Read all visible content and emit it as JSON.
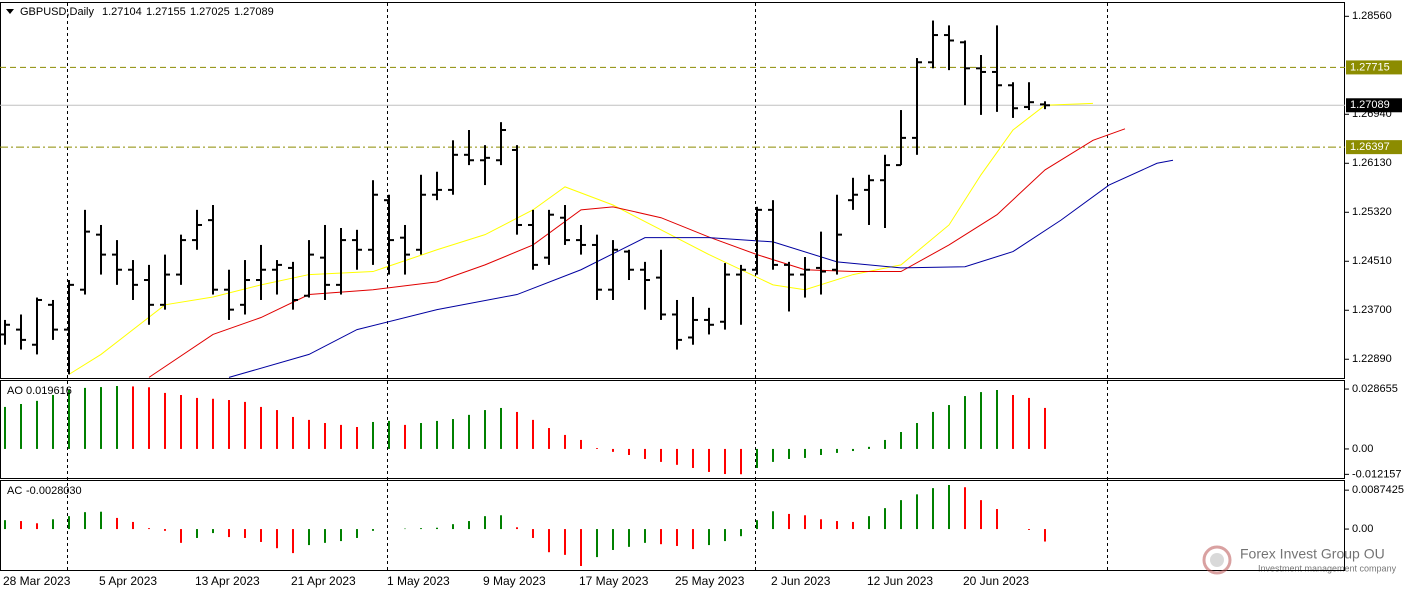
{
  "chart_data": [
    {
      "type": "ohlc",
      "title": "GBPUSD,Daily",
      "categories": [
        "28 Mar 2023",
        null,
        null,
        null,
        null,
        null,
        "5 Apr 2023",
        null,
        null,
        null,
        null,
        null,
        "13 Apr 2023",
        null,
        null,
        null,
        null,
        null,
        "21 Apr 2023",
        null,
        null,
        null,
        null,
        null,
        "1 May 2023",
        null,
        null,
        null,
        null,
        null,
        "9 May 2023",
        null,
        null,
        null,
        null,
        null,
        "17 May 2023",
        null,
        null,
        null,
        null,
        null,
        "25 May 2023",
        null,
        null,
        null,
        null,
        null,
        "2 Jun 2023",
        null,
        null,
        null,
        null,
        null,
        "12 Jun 2023",
        null,
        null,
        null,
        null,
        null,
        "20 Jun 2023",
        null,
        null,
        null,
        null,
        null
      ],
      "open": [
        1.233,
        1.2338,
        1.2313,
        1.2379,
        1.2338,
        1.2404,
        1.2495,
        1.2462,
        1.2437,
        1.242,
        1.2379,
        1.2429,
        1.2486,
        1.2519,
        1.2404,
        1.2379,
        1.242,
        1.2437,
        1.244,
        1.2394,
        1.2457,
        1.2412,
        1.2486,
        1.247,
        1.2552,
        1.249,
        1.247,
        1.2561,
        1.2569,
        1.2627,
        1.2618,
        1.2618,
        1.2635,
        1.2511,
        1.2457,
        1.2523,
        1.2486,
        1.2478,
        1.2404,
        1.2467,
        1.2437,
        1.2424,
        1.2363,
        1.2325,
        1.2354,
        1.2351,
        1.2429,
        1.2437,
        1.2536,
        1.2445,
        1.2429,
        1.244,
        1.2437,
        1.2552,
        1.2569,
        1.2585,
        1.261,
        1.2655,
        1.278,
        1.2825,
        1.2813,
        1.277,
        1.2764,
        1.2742,
        1.2706,
        1.27104
      ],
      "high": [
        1.2354,
        1.2363,
        1.2391,
        1.2387,
        1.242,
        1.2536,
        1.2511,
        1.2486,
        1.2453,
        1.2445,
        1.2462,
        1.2495,
        1.2536,
        1.2544,
        1.2437,
        1.2453,
        1.2478,
        1.2453,
        1.245,
        1.2486,
        1.2511,
        1.2506,
        1.2503,
        1.2585,
        1.2561,
        1.2511,
        1.2594,
        1.2599,
        1.2651,
        1.2668,
        1.2643,
        1.2681,
        1.2643,
        1.2536,
        1.2536,
        1.2544,
        1.2511,
        1.2495,
        1.2486,
        1.247,
        1.245,
        1.247,
        1.2387,
        1.2392,
        1.2374,
        1.2448,
        1.2445,
        1.2541,
        1.2552,
        1.245,
        1.2458,
        1.25,
        1.2561,
        1.2589,
        1.2594,
        1.2627,
        1.2701,
        1.2787,
        1.2849,
        1.2841,
        1.2816,
        1.2792,
        1.2841,
        1.2747,
        1.2747,
        1.27155
      ],
      "low": [
        1.2313,
        1.2305,
        1.2297,
        1.2321,
        1.2264,
        1.2396,
        1.2429,
        1.2412,
        1.2387,
        1.2346,
        1.2371,
        1.2412,
        1.247,
        1.2396,
        1.2354,
        1.2363,
        1.2387,
        1.2396,
        1.2371,
        1.2391,
        1.2387,
        1.2396,
        1.2437,
        1.2445,
        1.2429,
        1.2429,
        1.2462,
        1.2552,
        1.2561,
        1.261,
        1.2577,
        1.261,
        1.2495,
        1.2437,
        1.2445,
        1.2478,
        1.2462,
        1.2387,
        1.2387,
        1.242,
        1.2371,
        1.2354,
        1.2305,
        1.2313,
        1.233,
        1.2338,
        1.2346,
        1.2429,
        1.2437,
        1.2368,
        1.2391,
        1.2396,
        1.2429,
        1.2536,
        1.2511,
        1.2506,
        1.261,
        1.2627,
        1.277,
        1.2767,
        1.2709,
        1.2693,
        1.2698,
        1.2688,
        1.2701,
        1.27025
      ],
      "close": [
        1.2346,
        1.2321,
        1.2387,
        1.2338,
        1.2412,
        1.25,
        1.2462,
        1.2437,
        1.2412,
        1.2379,
        1.2429,
        1.2486,
        1.2511,
        1.2404,
        1.2371,
        1.242,
        1.2437,
        1.2445,
        1.2387,
        1.2462,
        1.2412,
        1.2486,
        1.247,
        1.2561,
        1.2486,
        1.2462,
        1.2561,
        1.2569,
        1.2627,
        1.2618,
        1.2622,
        1.2668,
        1.2511,
        1.2445,
        1.2528,
        1.2486,
        1.2478,
        1.2404,
        1.247,
        1.2437,
        1.242,
        1.2363,
        1.2321,
        1.2354,
        1.2346,
        1.2429,
        1.2437,
        1.2536,
        1.2445,
        1.2429,
        1.2437,
        1.2434,
        1.2495,
        1.2561,
        1.2585,
        1.261,
        1.2655,
        1.278,
        1.2825,
        1.2816,
        1.277,
        1.2764,
        1.2742,
        1.2704,
        1.2714,
        1.27089
      ],
      "color": "#000000",
      "ylim": [
        1.2258,
        1.2878
      ],
      "yticks": [
        {
          "value": 1.2856,
          "label": "1.28560"
        },
        {
          "value": 1.2694,
          "label": "1.26940"
        },
        {
          "value": 1.2613,
          "label": "1.26130"
        },
        {
          "value": 1.2532,
          "label": "1.25320"
        },
        {
          "value": 1.2451,
          "label": "1.24510"
        },
        {
          "value": 1.237,
          "label": "1.23700"
        },
        {
          "value": 1.2289,
          "label": "1.22890"
        }
      ],
      "levels": [
        {
          "value": 1.27715,
          "label": "1.27715",
          "color": "#8c8c00",
          "style": "dash"
        },
        {
          "value": 1.26397,
          "label": "1.26397",
          "color": "#8c8c00",
          "style": "dashdot"
        }
      ],
      "current_color": "#c0c0c0",
      "lines": [
        {
          "color": "#ffff00",
          "x": [
            4,
            6,
            10,
            13,
            16,
            19,
            23,
            27,
            30,
            33,
            35,
            38,
            41,
            44,
            48,
            50,
            53,
            56,
            59,
            61,
            63,
            65,
            68
          ],
          "values": [
            1.2264,
            1.2297,
            1.2379,
            1.2392,
            1.2412,
            1.2429,
            1.2434,
            1.247,
            1.2495,
            1.2536,
            1.2574,
            1.2544,
            1.2503,
            1.2462,
            1.2412,
            1.2404,
            1.2429,
            1.2445,
            1.2511,
            1.2594,
            1.2668,
            1.2709,
            1.2712
          ]
        },
        {
          "color": "#e00000",
          "x": [
            9,
            13,
            16,
            19,
            23,
            27,
            30,
            33,
            36,
            38,
            41,
            44,
            47,
            50,
            53,
            56,
            59,
            62,
            65,
            68,
            70
          ],
          "values": [
            1.2259,
            1.233,
            1.2358,
            1.2396,
            1.2404,
            1.2417,
            1.2445,
            1.2478,
            1.2536,
            1.2541,
            1.2523,
            1.2491,
            1.2462,
            1.2437,
            1.2434,
            1.2434,
            1.2478,
            1.2528,
            1.2602,
            1.2651,
            1.267
          ]
        },
        {
          "color": "#0000a0",
          "x": [
            14,
            19,
            22,
            27,
            32,
            36,
            40,
            44,
            48,
            52,
            56,
            60,
            63,
            66,
            69,
            72,
            73
          ],
          "values": [
            1.2259,
            1.2297,
            1.2338,
            1.2371,
            1.2396,
            1.2437,
            1.249,
            1.249,
            1.2483,
            1.245,
            1.244,
            1.2442,
            1.2467,
            1.2519,
            1.2577,
            1.2613,
            1.2618
          ]
        }
      ]
    },
    {
      "type": "histogram",
      "title": "AO",
      "values": [
        0.0201,
        0.0215,
        0.023,
        0.0258,
        0.0282,
        0.0292,
        0.0296,
        0.0301,
        0.0299,
        0.0295,
        0.0268,
        0.0258,
        0.0244,
        0.024,
        0.0234,
        0.0225,
        0.0201,
        0.0186,
        0.0153,
        0.0139,
        0.0124,
        0.0115,
        0.0105,
        0.0129,
        0.0134,
        0.0115,
        0.0124,
        0.0134,
        0.0143,
        0.0163,
        0.0186,
        0.0196,
        0.0177,
        0.0139,
        0.01,
        0.0067,
        0.0043,
        0.0004,
        -0.0014,
        -0.0029,
        -0.0048,
        -0.0062,
        -0.0076,
        -0.0091,
        -0.011,
        -0.012,
        -0.0121,
        -0.0091,
        -0.0062,
        -0.0048,
        -0.0043,
        -0.0029,
        -0.0019,
        -0.001,
        0.001,
        0.0043,
        0.0081,
        0.0124,
        0.0177,
        0.021,
        0.0253,
        0.0272,
        0.0282,
        0.0258,
        0.0244,
        0.019616
      ],
      "up_color": "#008000",
      "down_color": "#ff0000",
      "ylim": [
        -0.0139,
        0.0325
      ],
      "yticks": [
        0.028655,
        {
          "value": 0,
          "label": "0.00"
        },
        -0.012157
      ]
    },
    {
      "type": "histogram",
      "title": "AC",
      "values": [
        0.002,
        0.0018,
        0.0013,
        0.0022,
        0.0029,
        0.0038,
        0.0039,
        0.0025,
        0.0016,
        0.0002,
        -0.0004,
        -0.0031,
        -0.002,
        -0.0009,
        -0.0018,
        -0.002,
        -0.0029,
        -0.0043,
        -0.0054,
        -0.0036,
        -0.0031,
        -0.0027,
        -0.002,
        -0.0004,
        0.0,
        0.0001,
        0.0002,
        0.0003,
        0.0011,
        0.0018,
        0.0029,
        0.0031,
        0.0004,
        -0.002,
        -0.0052,
        -0.0058,
        -0.0083,
        -0.0063,
        -0.0047,
        -0.004,
        -0.0031,
        -0.0034,
        -0.0038,
        -0.0045,
        -0.0036,
        -0.0027,
        -0.0016,
        0.002,
        0.004,
        0.0034,
        0.0031,
        0.0022,
        0.0018,
        0.0016,
        0.0029,
        0.0047,
        0.0065,
        0.0078,
        0.0092,
        0.0099,
        0.0094,
        0.0065,
        0.0045,
        0.0,
        -0.0002,
        -0.002803
      ],
      "last_value_label": "-0.0028030",
      "up_color": "#008000",
      "down_color": "#ff0000",
      "ylim": [
        -0.0092,
        0.0108
      ],
      "yticks": [
        0.0087425,
        {
          "value": 0,
          "label": "0.00"
        }
      ]
    }
  ],
  "watermark": {
    "title": "Forex Invest Group OU",
    "subtitle": "Investment management company"
  }
}
